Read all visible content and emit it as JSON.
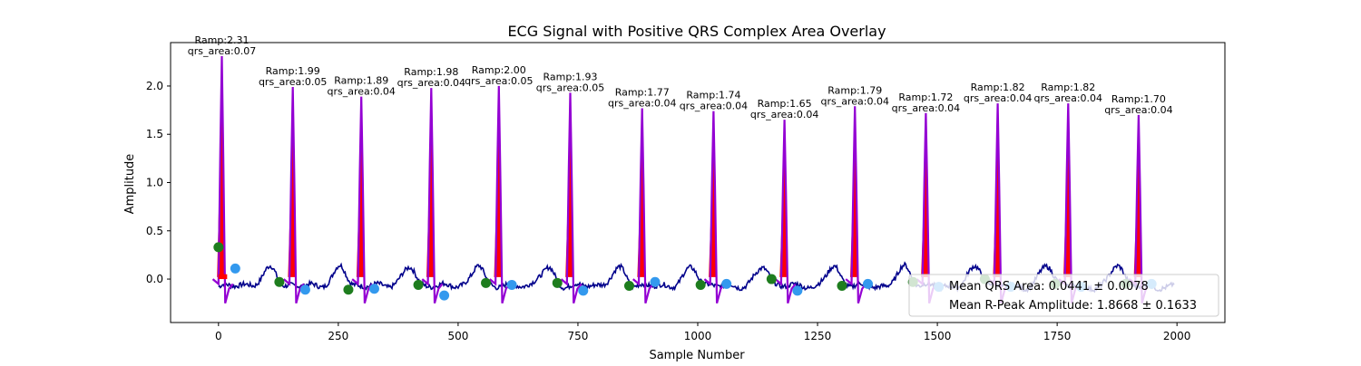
{
  "chart_data": {
    "type": "line",
    "title": "ECG Signal with Positive QRS Complex Area Overlay",
    "xlabel": "Sample Number",
    "ylabel": "Amplitude",
    "xlim": [
      -100,
      2100
    ],
    "ylim": [
      -0.45,
      2.45
    ],
    "xticks": [
      0,
      250,
      500,
      750,
      1000,
      1250,
      1500,
      1750,
      2000
    ],
    "yticks": [
      0.0,
      0.5,
      1.0,
      1.5,
      2.0
    ],
    "ytick_labels": [
      "0.0",
      "0.5",
      "1.0",
      "1.5",
      "2.0"
    ],
    "grid": false,
    "legend_position": "bottom-right",
    "colors": {
      "signal": "#00008b",
      "qrs_line": "#9400d3",
      "qrs_fill": "#ff0000",
      "q_point": "#1e7d1e",
      "s_point": "#3399ee"
    },
    "beats": [
      {
        "r_sample": 7,
        "ramp": 2.31,
        "qrs_area": 0.07,
        "ramp_label": "Ramp:2.31",
        "area_label": "qrs_area:0.07",
        "q_sample": 0,
        "q_amp": 0.33,
        "s_sample": 35,
        "s_amp": 0.11
      },
      {
        "r_sample": 155,
        "ramp": 1.99,
        "ramp_label": "Ramp:1.99",
        "area_label": "qrs_area:0.05",
        "q_sample": 127,
        "q_amp": -0.03,
        "s_sample": 181,
        "s_amp": -0.11
      },
      {
        "r_sample": 298,
        "ramp": 1.89,
        "ramp_label": "Ramp:1.89",
        "area_label": "qrs_area:0.04",
        "q_sample": 271,
        "q_amp": -0.11,
        "s_sample": 325,
        "s_amp": -0.1
      },
      {
        "r_sample": 444,
        "ramp": 1.98,
        "ramp_label": "Ramp:1.98",
        "area_label": "qrs_area:0.04",
        "q_sample": 417,
        "q_amp": -0.06,
        "s_sample": 471,
        "s_amp": -0.17
      },
      {
        "r_sample": 585,
        "ramp": 2.0,
        "ramp_label": "Ramp:2.00",
        "area_label": "qrs_area:0.05",
        "q_sample": 558,
        "q_amp": -0.04,
        "s_sample": 612,
        "s_amp": -0.06
      },
      {
        "r_sample": 734,
        "ramp": 1.93,
        "ramp_label": "Ramp:1.93",
        "area_label": "qrs_area:0.05",
        "q_sample": 707,
        "q_amp": -0.04,
        "s_sample": 761,
        "s_amp": -0.12
      },
      {
        "r_sample": 884,
        "ramp": 1.77,
        "ramp_label": "Ramp:1.77",
        "area_label": "qrs_area:0.04",
        "q_sample": 857,
        "q_amp": -0.07,
        "s_sample": 911,
        "s_amp": -0.03
      },
      {
        "r_sample": 1033,
        "ramp": 1.74,
        "ramp_label": "Ramp:1.74",
        "area_label": "qrs_area:0.04",
        "q_sample": 1006,
        "q_amp": -0.06,
        "s_sample": 1060,
        "s_amp": -0.05
      },
      {
        "r_sample": 1181,
        "ramp": 1.65,
        "ramp_label": "Ramp:1.65",
        "area_label": "qrs_area:0.04",
        "q_sample": 1154,
        "q_amp": 0.0,
        "s_sample": 1208,
        "s_amp": -0.12
      },
      {
        "r_sample": 1328,
        "ramp": 1.79,
        "ramp_label": "Ramp:1.79",
        "area_label": "qrs_area:0.04",
        "q_sample": 1301,
        "q_amp": -0.07,
        "s_sample": 1355,
        "s_amp": -0.05
      },
      {
        "r_sample": 1476,
        "ramp": 1.72,
        "ramp_label": "Ramp:1.72",
        "area_label": "qrs_area:0.04",
        "q_sample": 1449,
        "q_amp": -0.03,
        "s_sample": 1503,
        "s_amp": -0.08
      },
      {
        "r_sample": 1626,
        "ramp": 1.82,
        "ramp_label": "Ramp:1.82",
        "area_label": "qrs_area:0.04",
        "q_sample": 1599,
        "q_amp": 0.0,
        "s_sample": 1653,
        "s_amp": -0.08
      },
      {
        "r_sample": 1773,
        "ramp": 1.82,
        "ramp_label": "Ramp:1.82",
        "area_label": "qrs_area:0.04",
        "q_sample": 1746,
        "q_amp": -0.05,
        "s_sample": 1800,
        "s_amp": -0.08
      },
      {
        "r_sample": 1920,
        "ramp": 1.7,
        "ramp_label": "Ramp:1.70",
        "area_label": "qrs_area:0.04",
        "q_sample": 1893,
        "q_amp": -0.05,
        "s_sample": 1947,
        "s_amp": -0.05
      }
    ],
    "legend": {
      "line1": "Mean QRS Area: 0.0441 ± 0.0078",
      "line2": "Mean R-Peak Amplitude: 1.8668 ± 0.1633"
    }
  }
}
